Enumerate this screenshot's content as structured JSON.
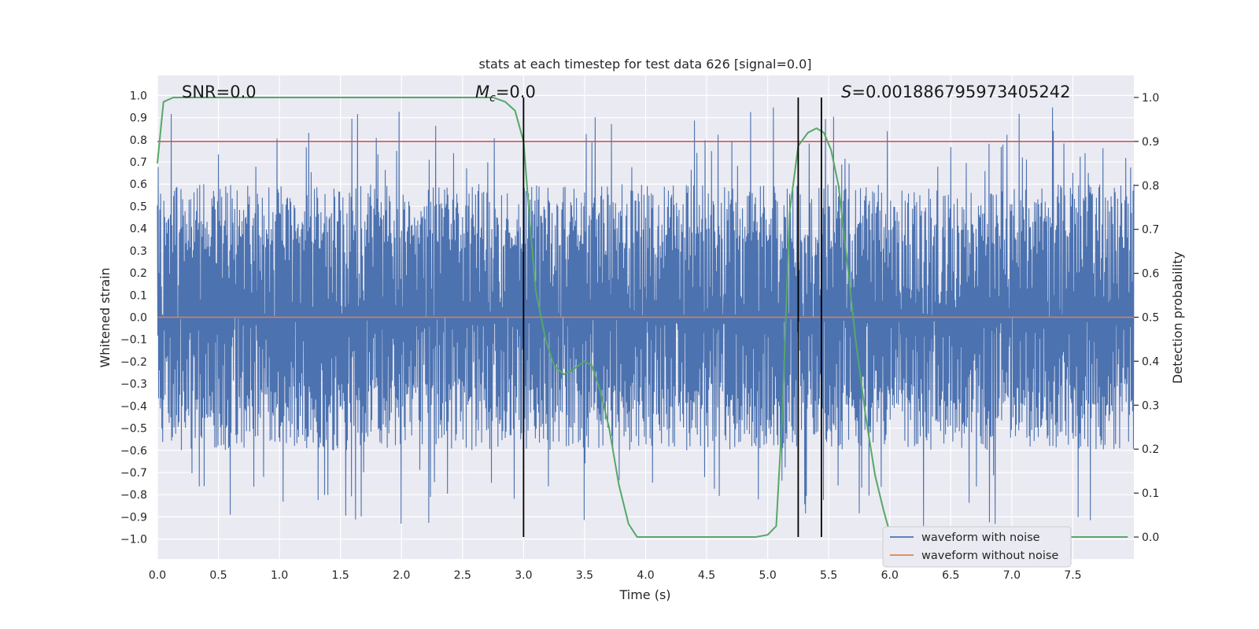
{
  "chart_data": {
    "type": "line",
    "title": "stats at each timestep for test data 626 [signal=0.0]",
    "xlabel": "Time (s)",
    "ylabel": "Whitened strain",
    "y2label": "Detection probability",
    "xlim": [
      0.0,
      8.0
    ],
    "ylim": [
      -1.09,
      1.09
    ],
    "y2lim": [
      -0.05,
      1.05
    ],
    "x_ticks": [
      "0.0",
      "0.5",
      "1.0",
      "1.5",
      "2.0",
      "2.5",
      "3.0",
      "3.5",
      "4.0",
      "4.5",
      "5.0",
      "5.5",
      "6.0",
      "6.5",
      "7.0",
      "7.5"
    ],
    "y_ticks": [
      "1.0",
      "0.9",
      "0.8",
      "0.7",
      "0.6",
      "0.5",
      "0.4",
      "0.3",
      "0.2",
      "0.1",
      "0.0",
      "-0.1",
      "-0.2",
      "-0.3",
      "-0.4",
      "-0.5",
      "-0.6",
      "-0.7",
      "-0.8",
      "-0.9",
      "-1.0"
    ],
    "y2_ticks": [
      "1.0",
      "0.9",
      "0.8",
      "0.7",
      "0.6",
      "0.5",
      "0.4",
      "0.3",
      "0.2",
      "0.1",
      "0.0"
    ],
    "annotations": {
      "snr": "SNR=0.0",
      "mc_symbol": "M",
      "mc_sub": "c",
      "mc_value": "=0.0",
      "s_symbol": "S",
      "s_value": "=0.001886795973405242"
    },
    "threshold": 0.9,
    "vertical_lines": [
      3.0,
      5.25,
      5.44
    ],
    "legend": {
      "position": "lower-right",
      "entries": [
        "waveform with noise",
        "waveform without noise"
      ]
    },
    "series": [
      {
        "name": "waveform with noise",
        "color": "#4c72b0",
        "note": "dense noise trace; approx. range",
        "y_range": [
          -1.0,
          0.98
        ]
      },
      {
        "name": "waveform without noise",
        "color": "#dd8452",
        "y": 0.0
      },
      {
        "name": "detection probability",
        "color": "#55a868",
        "axis": "right",
        "x": [
          0.0,
          0.05,
          0.13,
          0.3,
          0.6,
          1.0,
          1.5,
          2.0,
          2.5,
          2.75,
          2.85,
          2.93,
          3.0,
          3.05,
          3.1,
          3.18,
          3.25,
          3.33,
          3.4,
          3.5,
          3.56,
          3.62,
          3.7,
          3.78,
          3.86,
          3.93,
          4.0,
          4.3,
          4.6,
          4.9,
          5.0,
          5.07,
          5.12,
          5.18,
          5.25,
          5.33,
          5.4,
          5.46,
          5.52,
          5.58,
          5.65,
          5.72,
          5.8,
          5.88,
          5.95,
          6.0,
          6.5,
          7.0,
          7.5,
          7.95
        ],
        "y": [
          0.85,
          0.99,
          1.0,
          1.0,
          1.0,
          1.0,
          1.0,
          1.0,
          1.0,
          1.0,
          0.99,
          0.97,
          0.9,
          0.72,
          0.56,
          0.45,
          0.39,
          0.37,
          0.38,
          0.4,
          0.39,
          0.34,
          0.25,
          0.12,
          0.03,
          0.0,
          0.0,
          0.0,
          0.0,
          0.0,
          0.005,
          0.025,
          0.28,
          0.74,
          0.89,
          0.92,
          0.93,
          0.92,
          0.88,
          0.8,
          0.63,
          0.45,
          0.28,
          0.14,
          0.06,
          0.01,
          0.0,
          0.0,
          0.0,
          0.0
        ]
      }
    ],
    "colors": {
      "background": "#eaeaf2",
      "grid": "#ffffff",
      "noise": "#4c72b0",
      "clean": "#dd8452",
      "probability": "#55a868",
      "threshold": "#c44e52",
      "vline": "#000000"
    }
  }
}
